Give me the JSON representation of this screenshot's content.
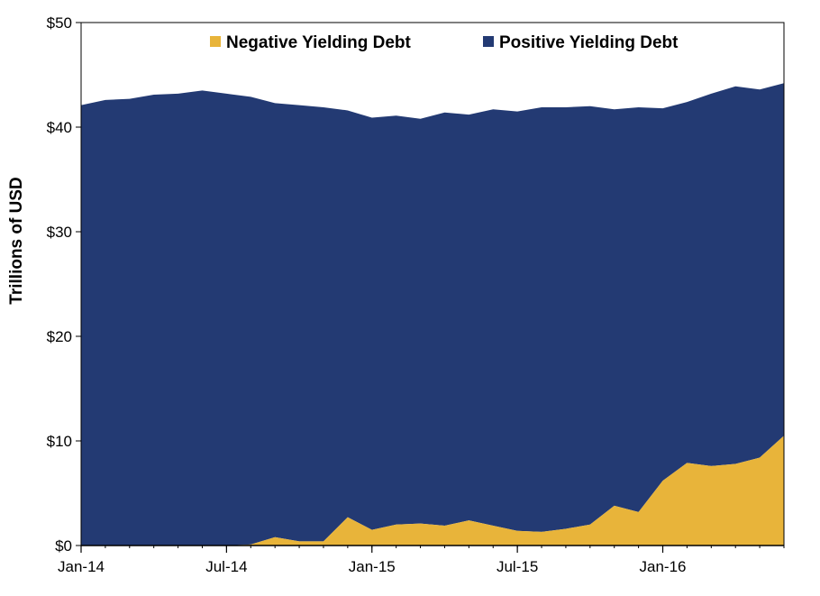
{
  "chart_data": {
    "type": "area",
    "stacked": true,
    "ylabel": "Trillions  of USD",
    "xlabel": "",
    "ylim": [
      0,
      50
    ],
    "y_ticks": [
      "$0",
      "$10",
      "$20",
      "$30",
      "$40",
      "$50"
    ],
    "y_tick_values": [
      0,
      10,
      20,
      30,
      40,
      50
    ],
    "x_tick_labels": [
      "Jan-14",
      "Jul-14",
      "Jan-15",
      "Jul-15",
      "Jan-16"
    ],
    "x_tick_months": [
      0,
      6,
      12,
      18,
      24
    ],
    "x_months": [
      0,
      1,
      2,
      3,
      4,
      5,
      6,
      7,
      8,
      9,
      10,
      11,
      12,
      13,
      14,
      15,
      16,
      17,
      18,
      19,
      20,
      21,
      22,
      23,
      24,
      25,
      26,
      27,
      28,
      29
    ],
    "legend_position": "top",
    "grid": false,
    "series": [
      {
        "name": "Negative Yielding Debt",
        "color": "#e8b43a",
        "values": [
          0,
          0,
          0,
          0,
          0,
          0,
          0,
          0.1,
          0.8,
          0.4,
          0.4,
          2.7,
          1.5,
          2.0,
          2.1,
          1.9,
          2.4,
          1.9,
          1.4,
          1.3,
          1.6,
          2.0,
          3.8,
          3.2,
          6.2,
          7.9,
          7.6,
          7.8,
          8.4,
          10.5
        ]
      },
      {
        "name": "Positive Yielding Debt",
        "color": "#233a73",
        "values": [
          42.1,
          42.6,
          42.7,
          43.1,
          43.2,
          43.5,
          43.2,
          42.8,
          41.5,
          41.7,
          41.5,
          38.9,
          39.4,
          39.1,
          38.7,
          39.5,
          38.8,
          39.8,
          40.1,
          40.6,
          40.3,
          40.0,
          37.9,
          38.7,
          35.6,
          34.5,
          35.6,
          36.1,
          35.2,
          33.7
        ]
      }
    ]
  }
}
